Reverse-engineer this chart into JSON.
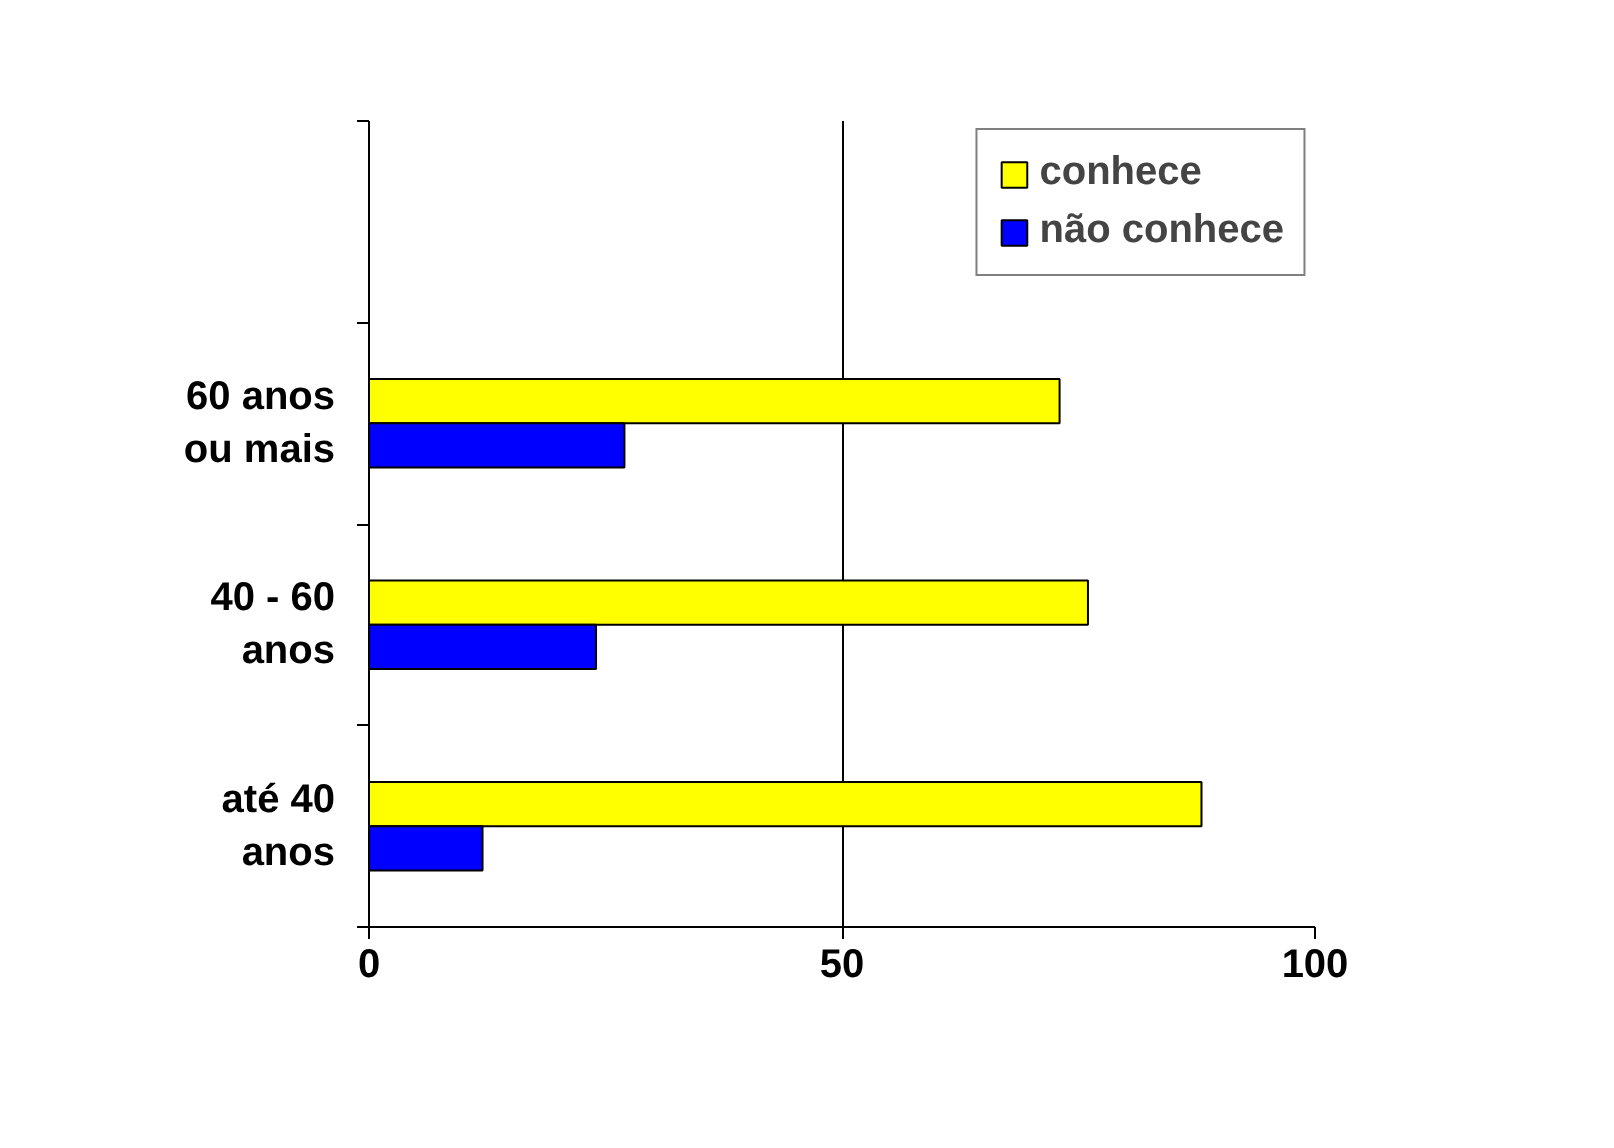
{
  "chart_data": {
    "type": "bar",
    "orientation": "horizontal",
    "categories": [
      null,
      "60 anos ou mais",
      "40 - 60 anos",
      "até 40 anos"
    ],
    "series": [
      {
        "name": "conhece",
        "color": "#ffff00",
        "values": [
          null,
          73,
          76,
          88
        ]
      },
      {
        "name": "não conhece",
        "color": "#0000ff",
        "values": [
          null,
          27,
          24,
          12
        ]
      }
    ],
    "xlim": [
      0,
      100
    ],
    "xticks": [
      0,
      50,
      100
    ],
    "grid": "x",
    "legend": "top right"
  }
}
